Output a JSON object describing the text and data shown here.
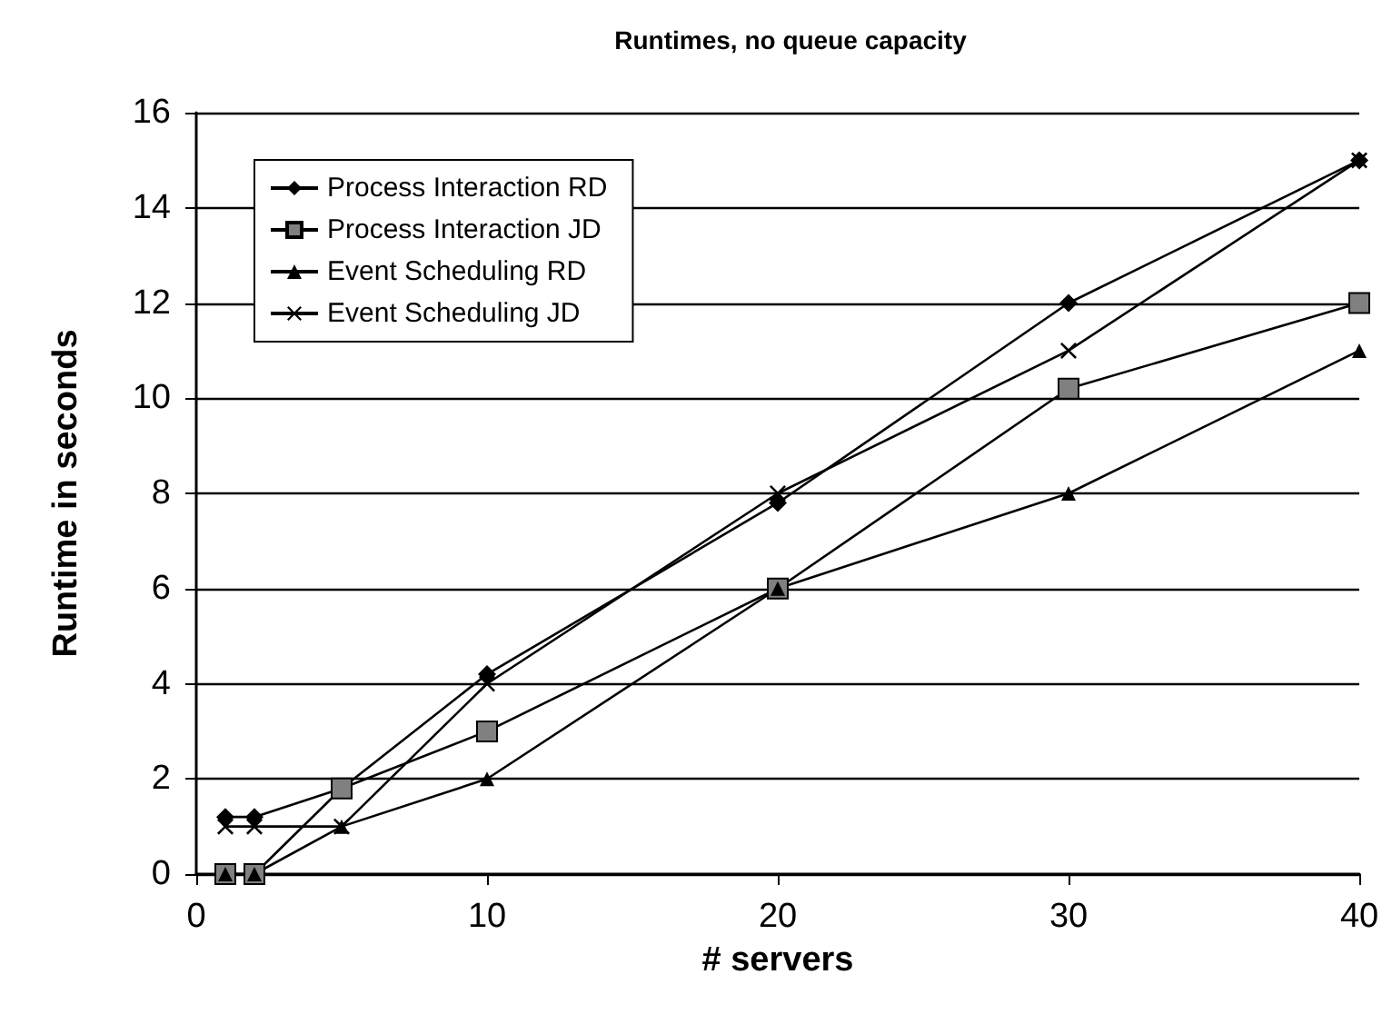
{
  "chart_data": {
    "type": "line",
    "title": "Runtimes, no queue capacity",
    "xlabel": "# servers",
    "ylabel": "Runtime in seconds",
    "x": [
      1,
      2,
      5,
      10,
      20,
      30,
      40
    ],
    "series": [
      {
        "name": "Process Interaction RD",
        "color": "#000000",
        "marker": "diamond",
        "values": [
          1.2,
          1.2,
          1.8,
          4.2,
          7.8,
          12,
          15
        ]
      },
      {
        "name": "Process Interaction JD",
        "color": "#000000",
        "marker": "square",
        "values": [
          0,
          0,
          1.8,
          3,
          6,
          10.2,
          12
        ]
      },
      {
        "name": "Event Scheduling RD",
        "color": "#000000",
        "marker": "triangle",
        "values": [
          0,
          0,
          1,
          2,
          6,
          8,
          11
        ]
      },
      {
        "name": "Event Scheduling JD",
        "color": "#000000",
        "marker": "cross",
        "values": [
          1,
          1,
          1,
          4,
          8,
          11,
          15
        ]
      }
    ],
    "xlim": [
      0,
      40
    ],
    "xticks": [
      0,
      10,
      20,
      30,
      40
    ],
    "ylim": [
      0,
      16
    ],
    "yticks": [
      0,
      2,
      4,
      6,
      8,
      10,
      12,
      14,
      16
    ],
    "grid": "y",
    "legend": "top left",
    "line_style": "solid"
  }
}
